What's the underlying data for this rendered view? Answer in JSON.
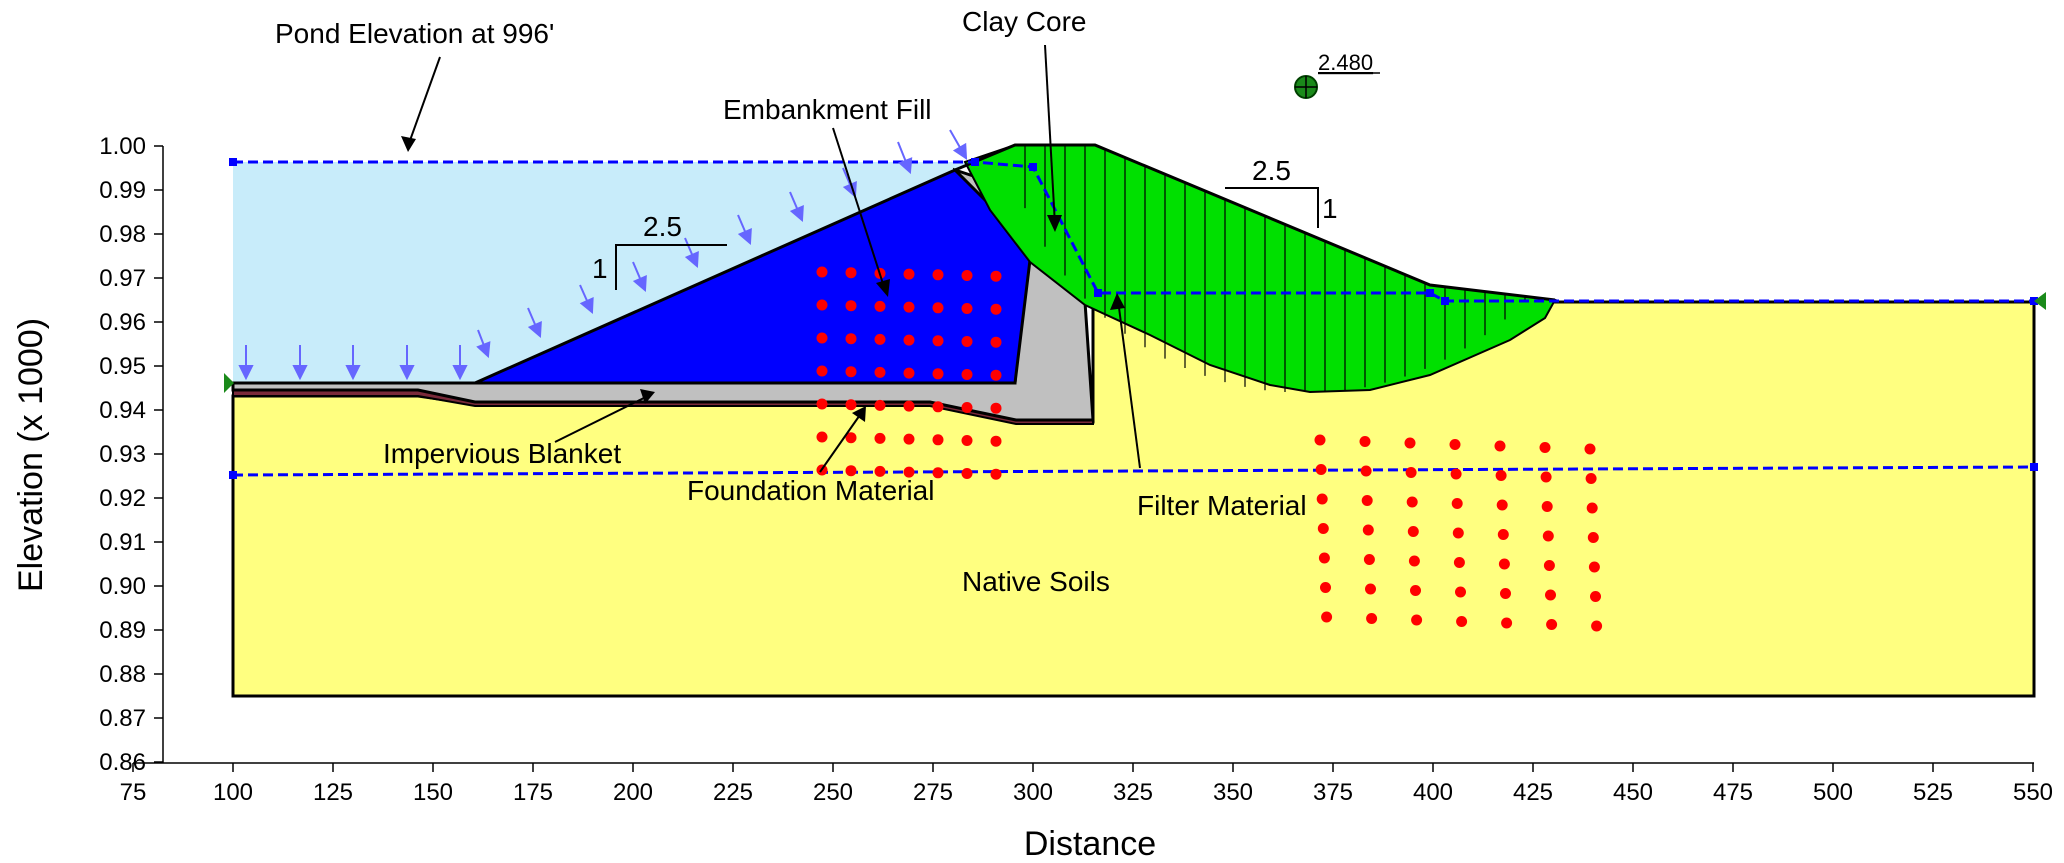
{
  "axes": {
    "x_title": "Distance",
    "y_title": "Elevation (x  1000)",
    "x_ticks": [
      "75",
      "100",
      "125",
      "150",
      "175",
      "200",
      "225",
      "250",
      "275",
      "300",
      "325",
      "350",
      "375",
      "400",
      "425",
      "450",
      "475",
      "500",
      "525",
      "550"
    ],
    "y_ticks": [
      "1.00",
      "0.99",
      "0.98",
      "0.97",
      "0.96",
      "0.95",
      "0.94",
      "0.93",
      "0.92",
      "0.91",
      "0.90",
      "0.89",
      "0.88",
      "0.87",
      "0.86"
    ]
  },
  "labels": {
    "pond": "Pond Elevation at 996'",
    "clay_core": "Clay Core",
    "embankment_fill": "Embankment Fill",
    "impervious_blanket": "Impervious Blanket",
    "foundation_material": "Foundation Material",
    "filter_material": "Filter Material",
    "native_soils": "Native Soils"
  },
  "slopes": {
    "upstream": {
      "run": "2.5",
      "rise": "1"
    },
    "downstream": {
      "run": "2.5",
      "rise": "1"
    }
  },
  "factor_of_safety": "2.480",
  "colors": {
    "water": "#c8ecfa",
    "native_soils": "#ffff80",
    "embankment_fill": "#0000ff",
    "clay_core": "#c0c0c0",
    "slip_mass": "#00ff00",
    "phreatic_line": "#0000ff",
    "pressure_arrows": "#6666ff",
    "grid_points": "#ff0000",
    "slip_center": "#008000"
  }
}
